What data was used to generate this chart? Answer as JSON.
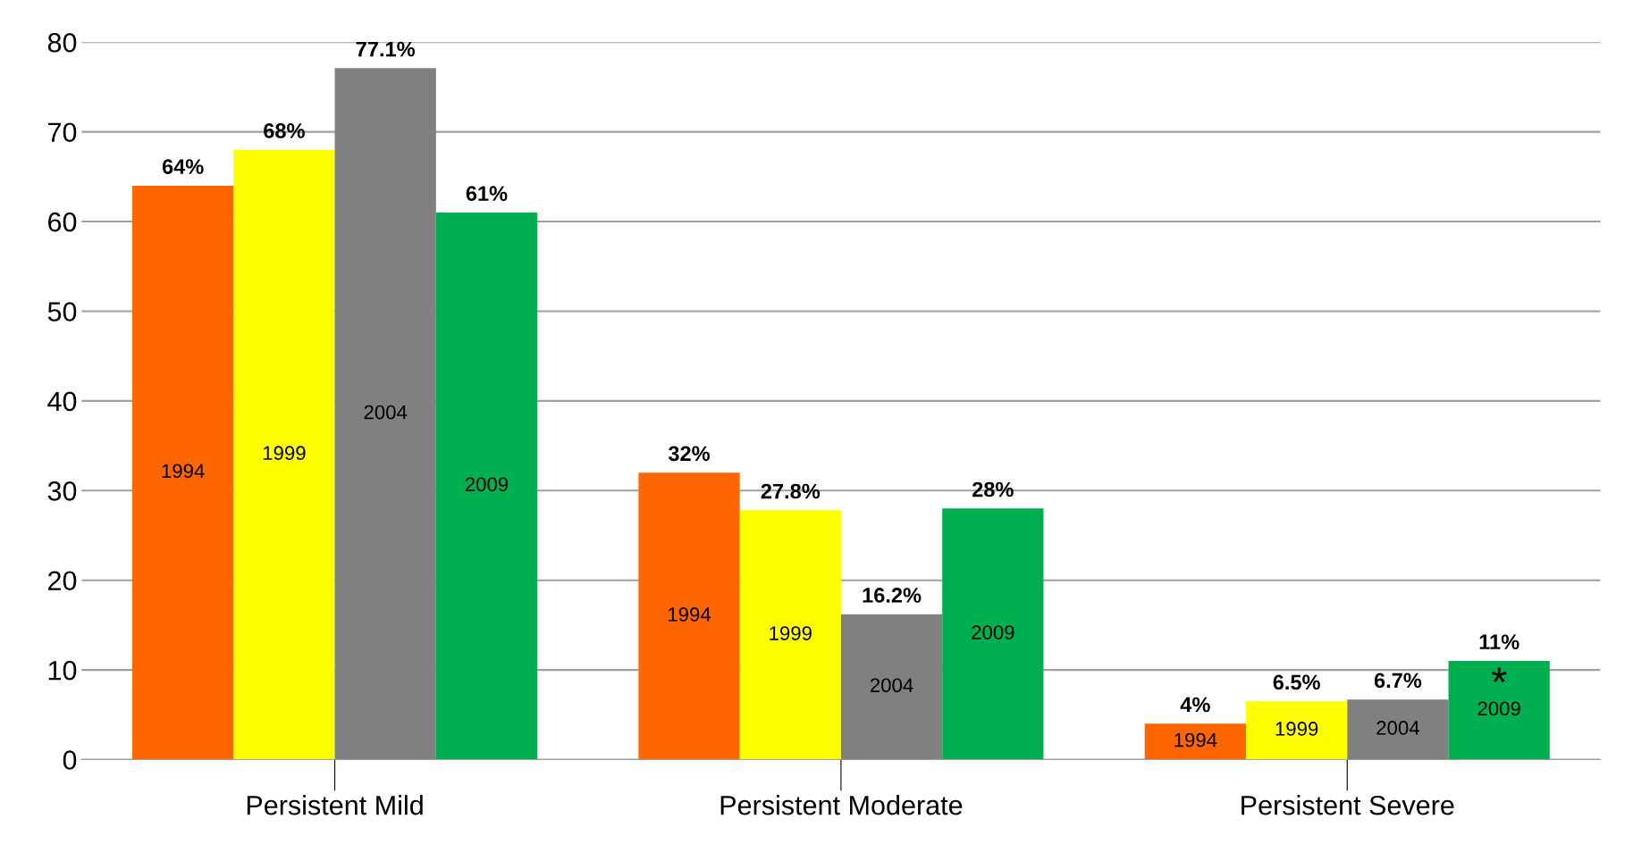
{
  "chart_data": {
    "type": "bar",
    "categories": [
      "Persistent Mild",
      "Persistent Moderate",
      "Persistent Severe"
    ],
    "series": [
      {
        "name": "1994",
        "color": "#ff6600",
        "values": [
          64,
          32,
          4
        ],
        "value_labels": [
          "64%",
          "32%",
          "4%"
        ]
      },
      {
        "name": "1999",
        "color": "#ffff00",
        "values": [
          68,
          27.8,
          6.5
        ],
        "value_labels": [
          "68%",
          "27.8%",
          "6.5%"
        ]
      },
      {
        "name": "2004",
        "color": "#808080",
        "values": [
          77.1,
          16.2,
          6.7
        ],
        "value_labels": [
          "77.1%",
          "16.2%",
          "6.7%"
        ]
      },
      {
        "name": "2009",
        "color": "#00b050",
        "values": [
          61,
          28,
          11
        ],
        "value_labels": [
          "61%",
          "28%",
          "11%"
        ]
      }
    ],
    "annotations": [
      "*"
    ],
    "ylim": [
      0,
      80
    ],
    "yticks": [
      0,
      10,
      20,
      30,
      40,
      50,
      60,
      70,
      80
    ],
    "grid": "y",
    "legend": false
  }
}
